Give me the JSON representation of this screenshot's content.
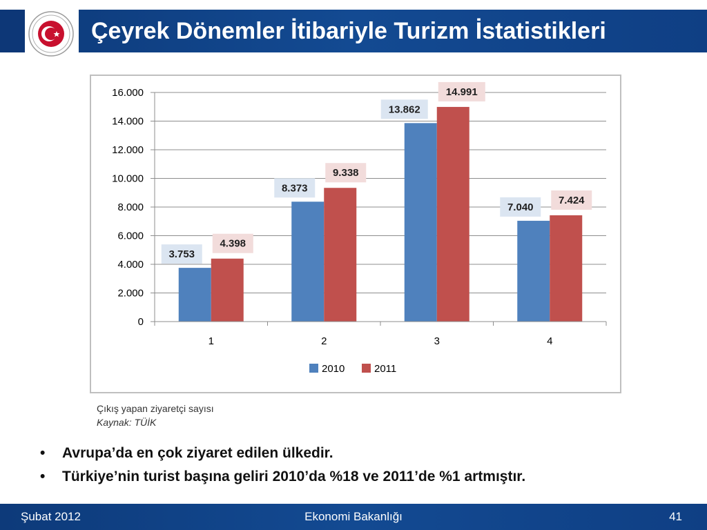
{
  "header": {
    "title": "Çeyrek Dönemler İtibariyle Turizm İstatistikleri",
    "logo_icon": "republic-of-turkey-ministry-of-economy-seal",
    "seal_text_top": "REPUBLIC OF TURKEY",
    "seal_text_bottom": "MINISTRY OF ECONOMY"
  },
  "chart_data": {
    "type": "bar",
    "categories": [
      "1",
      "2",
      "3",
      "4"
    ],
    "series": [
      {
        "name": "2010",
        "values": [
          3753,
          8373,
          13862,
          7040
        ],
        "labels": [
          "3.753",
          "8.373",
          "13.862",
          "7.040"
        ],
        "color": "#4f81bd",
        "label_bg": "#dbe5f1"
      },
      {
        "name": "2011",
        "values": [
          4398,
          9338,
          14991,
          7424
        ],
        "labels": [
          "4.398",
          "9.338",
          "14.991",
          "7.424"
        ],
        "color": "#c0504d",
        "label_bg": "#f2dcdb"
      }
    ],
    "ylim": [
      0,
      16000
    ],
    "yticks": [
      0,
      2000,
      4000,
      6000,
      8000,
      10000,
      12000,
      14000,
      16000
    ],
    "ytick_labels": [
      "0",
      "2.000",
      "4.000",
      "6.000",
      "8.000",
      "10.000",
      "12.000",
      "14.000",
      "16.000"
    ],
    "grid": true,
    "legend_position": "bottom",
    "title": "",
    "xlabel": "",
    "ylabel": ""
  },
  "caption": {
    "description": "Çıkış yapan ziyaretçi sayısı",
    "source": "Kaynak: TÜİK"
  },
  "bullets": [
    "Avrupa’da en çok ziyaret edilen ülkedir.",
    "Türkiye’nin turist başına geliri 2010’da %18 ve 2011’de %1 artmıştır."
  ],
  "bullet_symbol": "•",
  "footer": {
    "date": "Şubat 2012",
    "organization": "Ekonomi Bakanlığı",
    "page_number": "41"
  }
}
